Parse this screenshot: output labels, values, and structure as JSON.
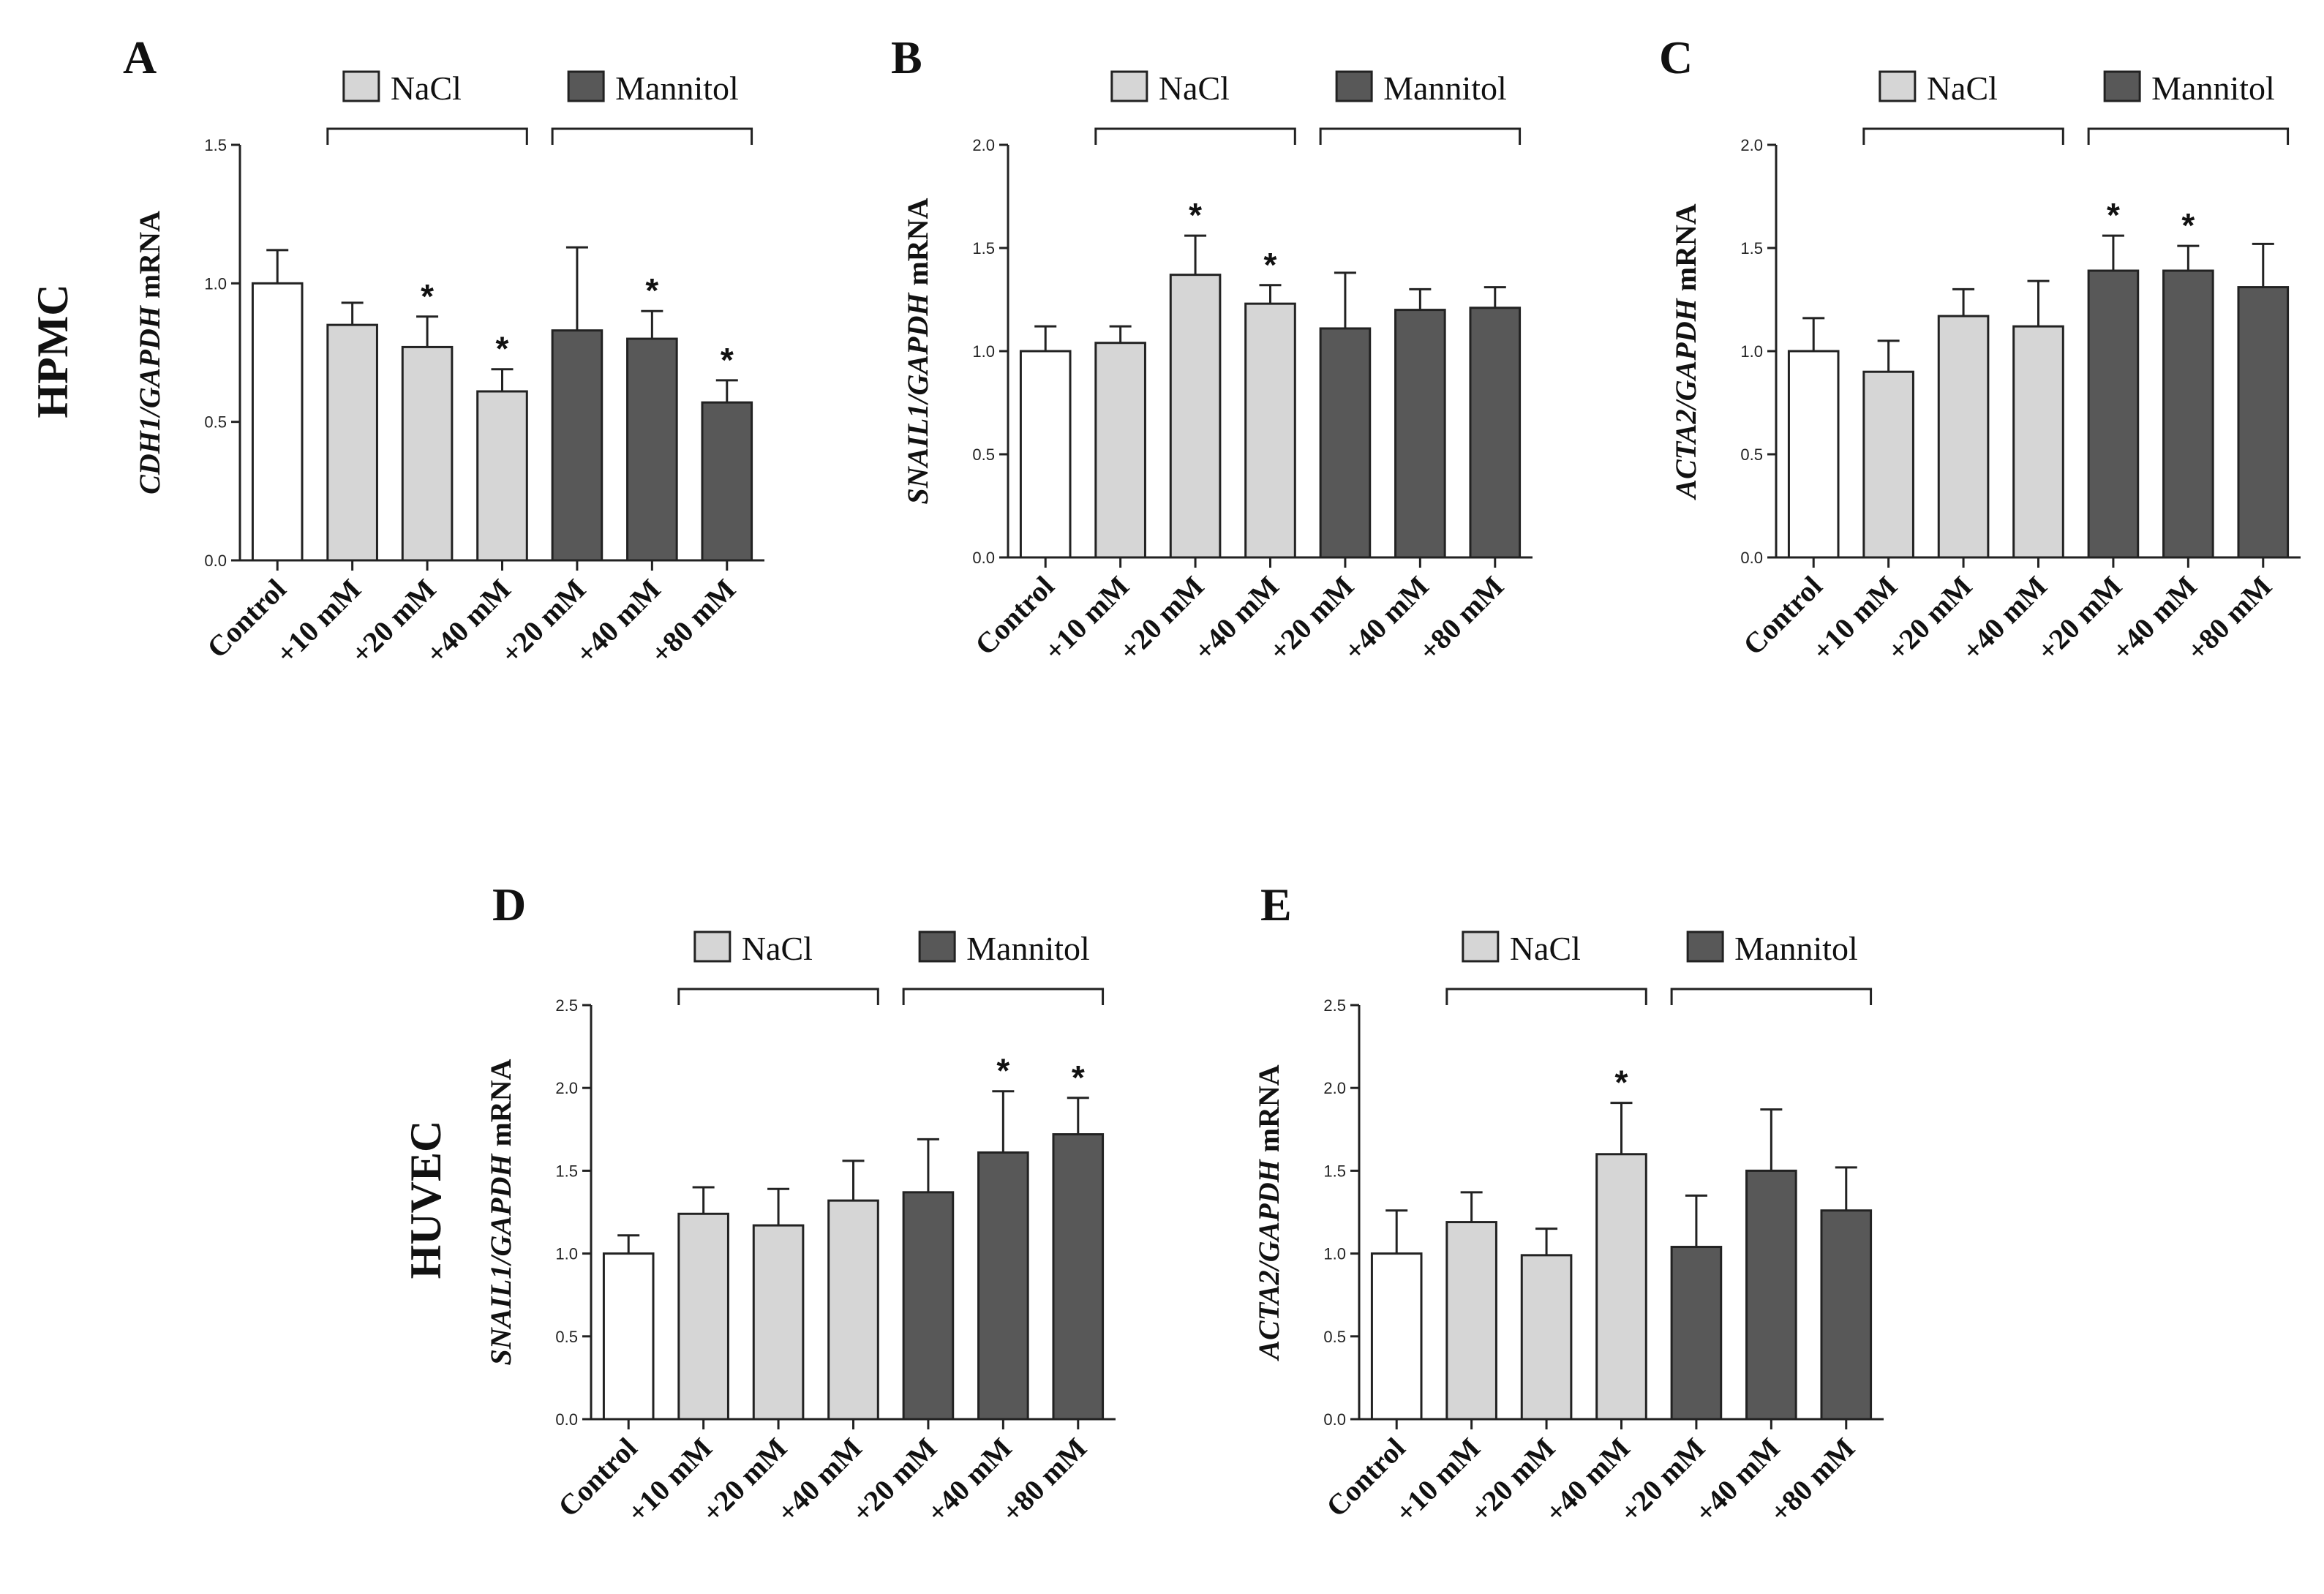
{
  "figure": {
    "row_labels": [
      "HPMC",
      "HUVEC"
    ],
    "legend": {
      "nacl": "NaCl",
      "mannitol": "Mannitol"
    },
    "colors": {
      "control": "#ffffff",
      "nacl": "#d6d6d6",
      "mannitol": "#585858",
      "stroke": "#222222"
    }
  },
  "chart_data": [
    {
      "panel": "A",
      "type": "bar",
      "row": "HPMC",
      "ylabel_gene": "CDH1/GAPDH",
      "ylabel_suffix": " mRNA",
      "ylim": [
        0,
        1.5
      ],
      "yticks": [
        "0.0",
        "0.5",
        "1.0",
        "1.5"
      ],
      "categories": [
        "Control",
        "+10 mM",
        "+20 mM",
        "+40 mM",
        "+20 mM",
        "+40 mM",
        "+80 mM"
      ],
      "groups": [
        "control",
        "nacl",
        "nacl",
        "nacl",
        "mannitol",
        "mannitol",
        "mannitol"
      ],
      "values": [
        1.0,
        0.85,
        0.77,
        0.61,
        0.83,
        0.8,
        0.57
      ],
      "errors": [
        0.12,
        0.08,
        0.11,
        0.08,
        0.3,
        0.1,
        0.08
      ],
      "significant": [
        false,
        false,
        true,
        true,
        false,
        true,
        true
      ]
    },
    {
      "panel": "B",
      "type": "bar",
      "row": "HPMC",
      "ylabel_gene": "SNAIL1/GAPDH",
      "ylabel_suffix": " mRNA",
      "ylim": [
        0,
        2.0
      ],
      "yticks": [
        "0.0",
        "0.5",
        "1.0",
        "1.5",
        "2.0"
      ],
      "categories": [
        "Control",
        "+10 mM",
        "+20 mM",
        "+40 mM",
        "+20 mM",
        "+40 mM",
        "+80 mM"
      ],
      "groups": [
        "control",
        "nacl",
        "nacl",
        "nacl",
        "mannitol",
        "mannitol",
        "mannitol"
      ],
      "values": [
        1.0,
        1.04,
        1.37,
        1.23,
        1.11,
        1.2,
        1.21
      ],
      "errors": [
        0.12,
        0.08,
        0.19,
        0.09,
        0.27,
        0.1,
        0.1
      ],
      "significant": [
        false,
        false,
        true,
        true,
        false,
        false,
        false
      ]
    },
    {
      "panel": "C",
      "type": "bar",
      "row": "HPMC",
      "ylabel_gene": "ACTA2/GAPDH",
      "ylabel_suffix": " mRNA",
      "ylim": [
        0,
        2.0
      ],
      "yticks": [
        "0.0",
        "0.5",
        "1.0",
        "1.5",
        "2.0"
      ],
      "categories": [
        "Control",
        "+10 mM",
        "+20 mM",
        "+40 mM",
        "+20 mM",
        "+40 mM",
        "+80 mM"
      ],
      "groups": [
        "control",
        "nacl",
        "nacl",
        "nacl",
        "mannitol",
        "mannitol",
        "mannitol"
      ],
      "values": [
        1.0,
        0.9,
        1.17,
        1.12,
        1.39,
        1.39,
        1.31
      ],
      "errors": [
        0.16,
        0.15,
        0.13,
        0.22,
        0.17,
        0.12,
        0.21
      ],
      "significant": [
        false,
        false,
        false,
        false,
        true,
        true,
        false
      ]
    },
    {
      "panel": "D",
      "type": "bar",
      "row": "HUVEC",
      "ylabel_gene": "SNAIL1/GAPDH",
      "ylabel_suffix": " mRNA",
      "ylim": [
        0,
        2.5
      ],
      "yticks": [
        "0.0",
        "0.5",
        "1.0",
        "1.5",
        "2.0",
        "2.5"
      ],
      "categories": [
        "Control",
        "+10 mM",
        "+20 mM",
        "+40 mM",
        "+20 mM",
        "+40 mM",
        "+80 mM"
      ],
      "groups": [
        "control",
        "nacl",
        "nacl",
        "nacl",
        "mannitol",
        "mannitol",
        "mannitol"
      ],
      "values": [
        1.0,
        1.24,
        1.17,
        1.32,
        1.37,
        1.61,
        1.72
      ],
      "errors": [
        0.11,
        0.16,
        0.22,
        0.24,
        0.32,
        0.37,
        0.22
      ],
      "significant": [
        false,
        false,
        false,
        false,
        false,
        true,
        true
      ]
    },
    {
      "panel": "E",
      "type": "bar",
      "row": "HUVEC",
      "ylabel_gene": "ACTA2/GAPDH",
      "ylabel_suffix": " mRNA",
      "ylim": [
        0,
        2.5
      ],
      "yticks": [
        "0.0",
        "0.5",
        "1.0",
        "1.5",
        "2.0",
        "2.5"
      ],
      "categories": [
        "Control",
        "+10 mM",
        "+20 mM",
        "+40 mM",
        "+20 mM",
        "+40 mM",
        "+80 mM"
      ],
      "groups": [
        "control",
        "nacl",
        "nacl",
        "nacl",
        "mannitol",
        "mannitol",
        "mannitol"
      ],
      "values": [
        1.0,
        1.19,
        0.99,
        1.6,
        1.04,
        1.5,
        1.26
      ],
      "errors": [
        0.26,
        0.18,
        0.16,
        0.31,
        0.31,
        0.37,
        0.26
      ],
      "significant": [
        false,
        false,
        false,
        true,
        false,
        false,
        false
      ]
    }
  ]
}
